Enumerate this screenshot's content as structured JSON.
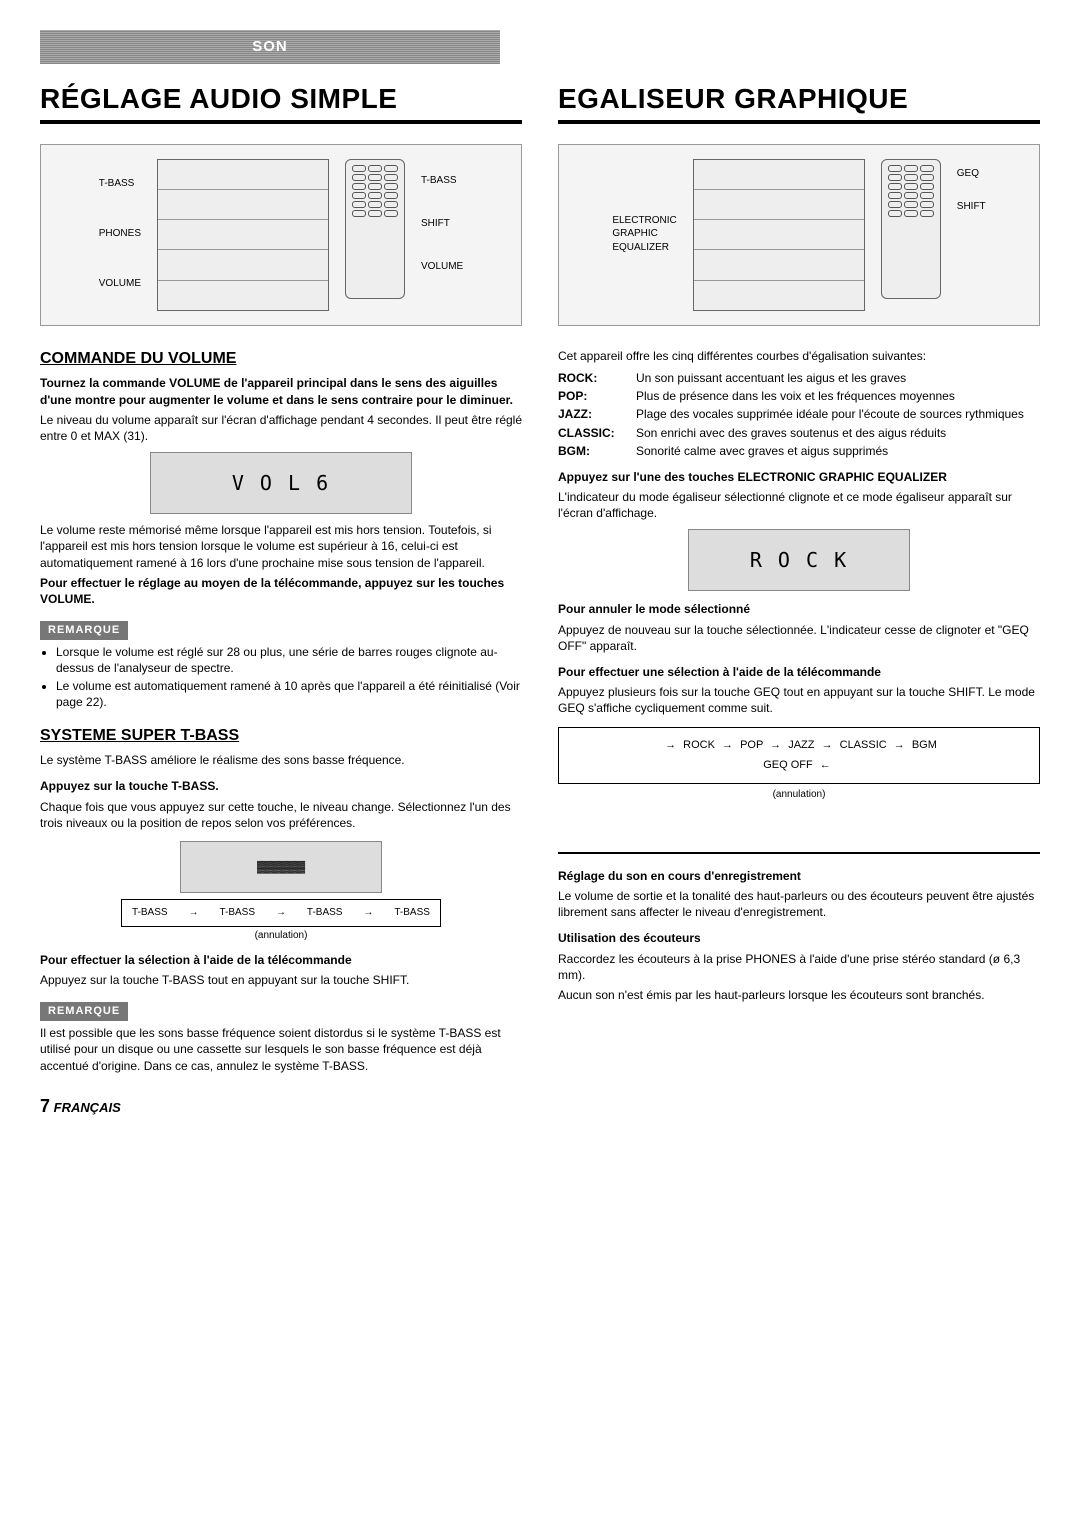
{
  "banner": "SON",
  "left": {
    "title": "RÉGLAGE AUDIO SIMPLE",
    "fig1": {
      "left_labels": [
        "T-BASS",
        "PHONES",
        "VOLUME"
      ],
      "right_labels": [
        "T-BASS",
        "SHIFT",
        "VOLUME"
      ]
    },
    "vol": {
      "heading": "COMMANDE DU VOLUME",
      "p1": "Tournez la commande VOLUME de l'appareil principal dans le sens des aiguilles d'une montre pour augmenter le volume et dans le sens contraire pour le diminuer.",
      "p2": "Le niveau du volume apparaît sur l'écran d'affichage pendant 4 secondes. Il peut être réglé entre 0 et MAX (31).",
      "lcd": "V O L   6",
      "p3": "Le volume reste mémorisé même lorsque l'appareil est mis hors tension. Toutefois, si l'appareil est mis hors tension lorsque le volume est supérieur à 16, celui-ci est automatiquement ramené à 16 lors d'une prochaine mise sous tension de l'appareil.",
      "p4": "Pour effectuer le réglage au moyen de la télécommande, appuyez sur les touches VOLUME.",
      "remarque": "REMARQUE",
      "bul1": "Lorsque le volume est réglé sur 28 ou plus, une série de barres rouges clignote au-dessus de l'analyseur de spectre.",
      "bul2": "Le volume est automatiquement ramené à 10 après que l'appareil a été réinitialisé (Voir page 22)."
    },
    "tbass": {
      "heading": "SYSTEME SUPER T-BASS",
      "p1": "Le système T-BASS améliore le réalisme des sons basse fréquence.",
      "h3a": "Appuyez sur la touche T-BASS.",
      "p2": "Chaque fois que vous appuyez sur cette touche, le niveau change. Sélectionnez l'un des trois niveaux ou la position de repos selon vos préférences.",
      "cycle_items": [
        "T-BASS",
        "T-BASS",
        "T-BASS",
        "T-BASS"
      ],
      "annul": "(annulation)",
      "h3b": "Pour effectuer la sélection à l'aide de la télécommande",
      "p3": "Appuyez sur la touche T-BASS tout en appuyant sur la touche SHIFT.",
      "remarque": "REMARQUE",
      "p4": "Il est possible que les sons basse fréquence soient distordus si le système T-BASS est utilisé pour un disque ou une cassette sur lesquels le son basse fréquence est déjà accentué d'origine. Dans ce cas, annulez le système T-BASS."
    }
  },
  "right": {
    "title": "EGALISEUR GRAPHIQUE",
    "fig2": {
      "left_labels_html": "ELECTRONIC<br>GRAPHIC<br>EQUALIZER",
      "right_labels": [
        "GEQ",
        "SHIFT"
      ]
    },
    "intro": "Cet appareil offre les cinq différentes courbes d'égalisation suivantes:",
    "eq": {
      "rock_label": "ROCK:",
      "rock_desc": "Un son puissant accentuant les aigus et les graves",
      "pop_label": "POP:",
      "pop_desc": "Plus de présence dans les voix et les fréquences moyennes",
      "jazz_label": "JAZZ:",
      "jazz_desc": "Plage des vocales supprimée idéale pour l'écoute de sources rythmiques",
      "classic_label": "CLASSIC:",
      "classic_desc": "Son enrichi avec des graves soutenus et des aigus réduits",
      "bgm_label": "BGM:",
      "bgm_desc": "Sonorité calme avec graves et aigus supprimés"
    },
    "h3a": "Appuyez sur l'une des touches ELECTRONIC GRAPHIC EQUALIZER",
    "p1": "L'indicateur du mode égaliseur sélectionné clignote et ce mode égaliseur apparaît sur l'écran d'affichage.",
    "lcd": "R O C K",
    "h3b": "Pour annuler le mode sélectionné",
    "p2": "Appuyez de nouveau sur la touche sélectionnée. L'indicateur cesse de clignoter et \"GEQ OFF\" apparaît.",
    "h3c": "Pour effectuer une sélection à l'aide de la télécommande",
    "p3": "Appuyez plusieurs fois sur la touche GEQ tout en appuyant sur la touche SHIFT. Le mode GEQ s'affiche cycliquement comme suit.",
    "cycle": {
      "items": [
        "ROCK",
        "POP",
        "JAZZ",
        "CLASSIC",
        "BGM"
      ],
      "off": "GEQ OFF",
      "annul": "(annulation)"
    },
    "bottom": {
      "h3a": "Réglage du son en cours d'enregistrement",
      "p1": "Le volume de sortie et la tonalité des haut-parleurs ou des écouteurs peuvent être ajustés librement sans affecter le niveau d'enregistrement.",
      "h3b": "Utilisation des écouteurs",
      "p2": "Raccordez les écouteurs à la prise PHONES à l'aide d'une prise stéréo standard (ø 6,3 mm).",
      "p3": "Aucun son n'est émis par les haut-parleurs lorsque les écouteurs sont branchés."
    }
  },
  "footer": {
    "num": "7",
    "lang": "FRANÇAIS"
  }
}
